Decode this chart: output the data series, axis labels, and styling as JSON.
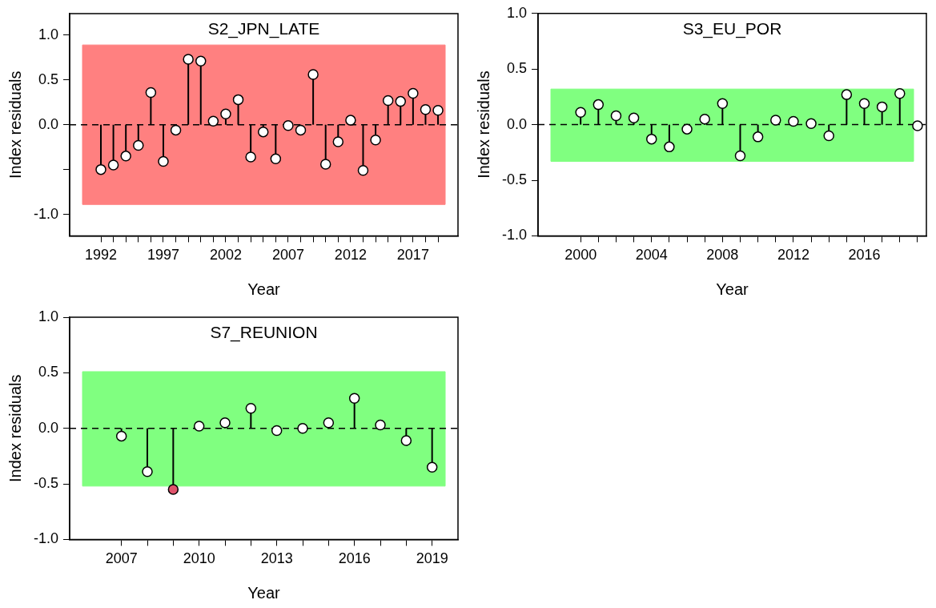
{
  "chart_data": [
    {
      "type": "lollipop",
      "title": "S2_JPN_LATE",
      "xlabel": "Year",
      "ylabel": "Index residuals",
      "x": [
        1992,
        1993,
        1994,
        1995,
        1996,
        1997,
        1998,
        1999,
        2000,
        2001,
        2002,
        2003,
        2004,
        2005,
        2006,
        2007,
        2008,
        2009,
        2010,
        2011,
        2012,
        2013,
        2014,
        2015,
        2016,
        2017,
        2018,
        2019
      ],
      "series": [
        {
          "color": "#000000",
          "colors": [
            "#ffffff",
            "#ffffff",
            "#ffffff",
            "#ffffff",
            "#ffffff",
            "#ffffff",
            "#ffffff",
            "#ffffff",
            "#ffffff",
            "#ffffff",
            "#ffffff",
            "#ffffff",
            "#ffffff",
            "#ffffff",
            "#ffffff",
            "#ffffff",
            "#ffffff",
            "#ffffff",
            "#ffffff",
            "#ffffff",
            "#ffffff",
            "#ffffff",
            "#ffffff",
            "#ffffff",
            "#ffffff",
            "#ffffff",
            "#ffffff",
            "#ffffff"
          ],
          "values": [
            -0.5,
            -0.45,
            -0.35,
            -0.23,
            0.36,
            -0.41,
            -0.06,
            0.73,
            0.71,
            0.04,
            0.12,
            0.28,
            -0.36,
            -0.08,
            -0.38,
            -0.01,
            -0.06,
            0.56,
            -0.44,
            -0.19,
            0.05,
            -0.51,
            -0.17,
            0.27,
            0.26,
            0.35,
            0.17,
            0.16
          ]
        }
      ],
      "xlim": [
        1989.5,
        2020.6
      ],
      "xticks": [
        {
          "value": 1992,
          "label": "1992"
        },
        {
          "value": 1993,
          "label": null
        },
        {
          "value": 1994,
          "label": null
        },
        {
          "value": 1995,
          "label": null
        },
        {
          "value": 1996,
          "label": null
        },
        {
          "value": 1997,
          "label": "1997"
        },
        {
          "value": 1998,
          "label": null
        },
        {
          "value": 1999,
          "label": null
        },
        {
          "value": 2000,
          "label": null
        },
        {
          "value": 2001,
          "label": null
        },
        {
          "value": 2002,
          "label": "2002"
        },
        {
          "value": 2003,
          "label": null
        },
        {
          "value": 2004,
          "label": null
        },
        {
          "value": 2005,
          "label": null
        },
        {
          "value": 2006,
          "label": null
        },
        {
          "value": 2007,
          "label": "2007"
        },
        {
          "value": 2008,
          "label": null
        },
        {
          "value": 2009,
          "label": null
        },
        {
          "value": 2010,
          "label": null
        },
        {
          "value": 2011,
          "label": null
        },
        {
          "value": 2012,
          "label": "2012"
        },
        {
          "value": 2013,
          "label": null
        },
        {
          "value": 2014,
          "label": null
        },
        {
          "value": 2015,
          "label": null
        },
        {
          "value": 2016,
          "label": null
        },
        {
          "value": 2017,
          "label": "2017"
        },
        {
          "value": 2018,
          "label": null
        },
        {
          "value": 2019,
          "label": null
        }
      ],
      "ylim": [
        -1.24,
        1.24
      ],
      "yticks": [
        {
          "value": -1,
          "label": "-1.0"
        },
        {
          "value": -0.5,
          "label": null
        },
        {
          "value": 0,
          "label": "0.0"
        },
        {
          "value": 0.5,
          "label": "0.5"
        },
        {
          "value": 1,
          "label": "1.0"
        }
      ],
      "ref_lines": [
        {
          "axis": "y",
          "value": 0,
          "line_style": "dashed",
          "color": "#000000"
        }
      ],
      "bands": [
        {
          "axis": "y",
          "from": -0.89,
          "to": 0.89,
          "color": "#ff8080"
        }
      ],
      "marker": "circle",
      "legend": false,
      "grid": false
    },
    {
      "type": "lollipop",
      "title": "S3_EU_POR",
      "xlabel": "Year",
      "ylabel": "Index residuals",
      "x": [
        2000,
        2001,
        2002,
        2003,
        2004,
        2005,
        2006,
        2007,
        2008,
        2009,
        2010,
        2011,
        2012,
        2013,
        2014,
        2015,
        2016,
        2017,
        2018,
        2019
      ],
      "series": [
        {
          "color": "#000000",
          "colors": [
            "#ffffff",
            "#ffffff",
            "#ffffff",
            "#ffffff",
            "#ffffff",
            "#ffffff",
            "#ffffff",
            "#ffffff",
            "#ffffff",
            "#ffffff",
            "#ffffff",
            "#ffffff",
            "#ffffff",
            "#ffffff",
            "#ffffff",
            "#ffffff",
            "#ffffff",
            "#ffffff",
            "#ffffff",
            "#ffffff"
          ],
          "values": [
            0.11,
            0.18,
            0.08,
            0.06,
            -0.13,
            -0.2,
            -0.04,
            0.05,
            0.19,
            -0.28,
            -0.11,
            0.04,
            0.03,
            0.01,
            -0.1,
            0.27,
            0.19,
            0.16,
            0.28,
            -0.01
          ]
        }
      ],
      "xlim": [
        1997.6,
        2019.5
      ],
      "xticks": [
        {
          "value": 2000,
          "label": "2000"
        },
        {
          "value": 2001,
          "label": null
        },
        {
          "value": 2002,
          "label": null
        },
        {
          "value": 2003,
          "label": null
        },
        {
          "value": 2004,
          "label": "2004"
        },
        {
          "value": 2005,
          "label": null
        },
        {
          "value": 2006,
          "label": null
        },
        {
          "value": 2007,
          "label": null
        },
        {
          "value": 2008,
          "label": "2008"
        },
        {
          "value": 2009,
          "label": null
        },
        {
          "value": 2010,
          "label": null
        },
        {
          "value": 2011,
          "label": null
        },
        {
          "value": 2012,
          "label": "2012"
        },
        {
          "value": 2013,
          "label": null
        },
        {
          "value": 2014,
          "label": null
        },
        {
          "value": 2015,
          "label": null
        },
        {
          "value": 2016,
          "label": "2016"
        },
        {
          "value": 2017,
          "label": null
        },
        {
          "value": 2018,
          "label": null
        },
        {
          "value": 2019,
          "label": null
        }
      ],
      "ylim": [
        -1,
        1
      ],
      "yticks": [
        {
          "value": -1,
          "label": "-1.0"
        },
        {
          "value": -0.5,
          "label": "-0.5"
        },
        {
          "value": 0,
          "label": "0.0"
        },
        {
          "value": 0.5,
          "label": "0.5"
        },
        {
          "value": 1,
          "label": "1.0"
        }
      ],
      "ref_lines": [
        {
          "axis": "y",
          "value": 0,
          "line_style": "dashed",
          "color": "#000000"
        }
      ],
      "bands": [
        {
          "axis": "y",
          "from": -0.33,
          "to": 0.32,
          "color": "#80ff80"
        }
      ],
      "marker": "circle",
      "legend": false,
      "grid": false
    },
    {
      "type": "lollipop",
      "title": "S7_REUNION",
      "xlabel": "Year",
      "ylabel": "Index residuals",
      "x": [
        2007,
        2008,
        2009,
        2010,
        2011,
        2012,
        2013,
        2014,
        2015,
        2016,
        2017,
        2018,
        2019
      ],
      "series": [
        {
          "color": "#000000",
          "colors": [
            "#ffffff",
            "#ffffff",
            "#df536b",
            "#ffffff",
            "#ffffff",
            "#ffffff",
            "#ffffff",
            "#ffffff",
            "#ffffff",
            "#ffffff",
            "#ffffff",
            "#ffffff",
            "#ffffff"
          ],
          "values": [
            -0.07,
            -0.39,
            -0.55,
            0.02,
            0.05,
            0.18,
            -0.02,
            0,
            0.05,
            0.27,
            0.03,
            -0.11,
            -0.35
          ]
        }
      ],
      "xlim": [
        2005,
        2020
      ],
      "xticks": [
        {
          "value": 2007,
          "label": "2007"
        },
        {
          "value": 2008,
          "label": null
        },
        {
          "value": 2009,
          "label": null
        },
        {
          "value": 2010,
          "label": "2010"
        },
        {
          "value": 2011,
          "label": null
        },
        {
          "value": 2012,
          "label": null
        },
        {
          "value": 2013,
          "label": "2013"
        },
        {
          "value": 2014,
          "label": null
        },
        {
          "value": 2015,
          "label": null
        },
        {
          "value": 2016,
          "label": "2016"
        },
        {
          "value": 2017,
          "label": null
        },
        {
          "value": 2018,
          "label": null
        },
        {
          "value": 2019,
          "label": "2019"
        }
      ],
      "ylim": [
        -1,
        1
      ],
      "yticks": [
        {
          "value": -1,
          "label": "-1.0"
        },
        {
          "value": -0.5,
          "label": "-0.5"
        },
        {
          "value": 0,
          "label": "0.0"
        },
        {
          "value": 0.5,
          "label": "0.5"
        },
        {
          "value": 1,
          "label": "1.0"
        }
      ],
      "ref_lines": [
        {
          "axis": "y",
          "value": 0,
          "line_style": "dashed",
          "color": "#000000"
        }
      ],
      "bands": [
        {
          "axis": "y",
          "from": -0.52,
          "to": 0.51,
          "color": "#80ff80"
        }
      ],
      "marker": "circle",
      "legend": false,
      "grid": false
    }
  ]
}
